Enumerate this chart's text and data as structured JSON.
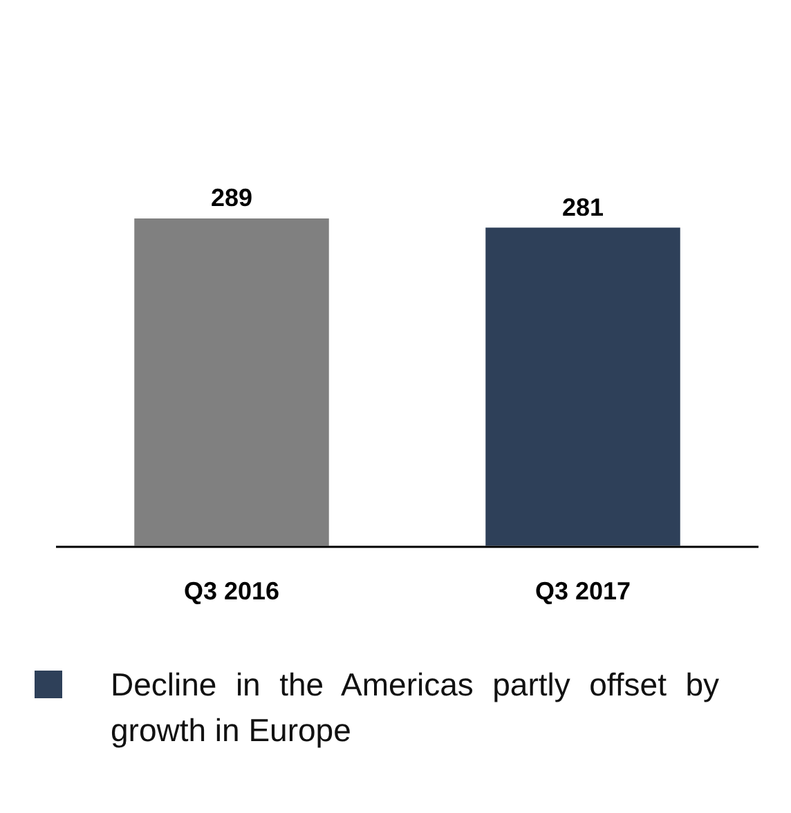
{
  "chart_data": {
    "type": "bar",
    "categories": [
      "Q3 2016",
      "Q3 2017"
    ],
    "values": [
      289,
      281
    ],
    "colors": [
      "#808080",
      "#2e4059"
    ],
    "data_labels": true,
    "grid": false,
    "annotations": [
      "Decline in the Americas partly offset by growth in Europe"
    ]
  }
}
